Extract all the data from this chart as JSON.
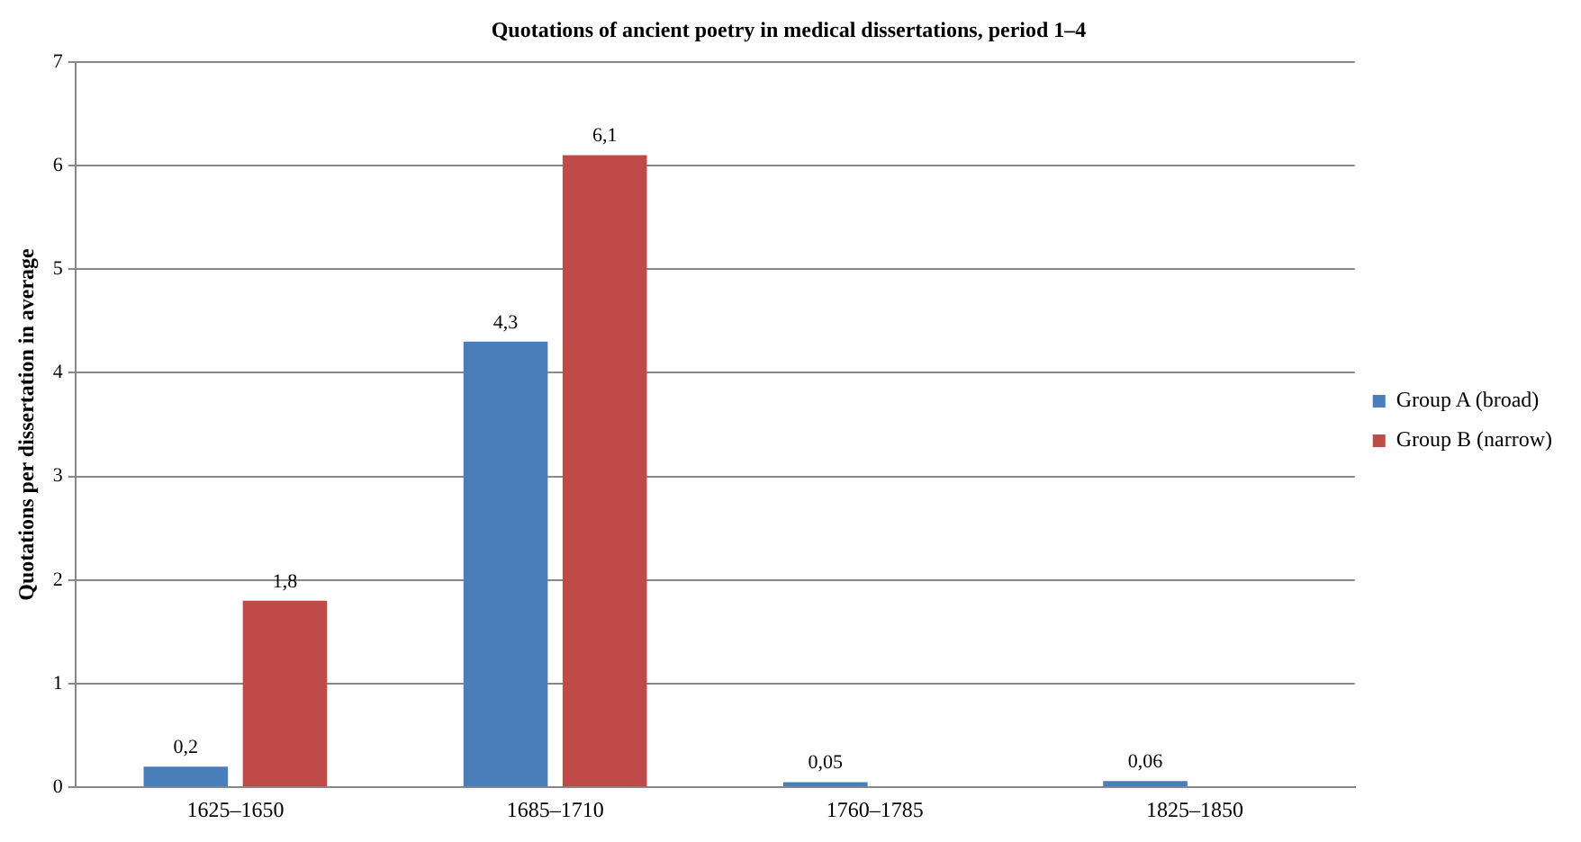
{
  "chart_data": {
    "type": "bar",
    "title": "Quotations of ancient poetry in medical dissertations, period 1–4",
    "ylabel": "Quotations per dissertation in average",
    "categories": [
      "1625–1650",
      "1685–1710",
      "1760–1785",
      "1825–1850"
    ],
    "series": [
      {
        "name": "Group A (broad)",
        "color": "#4a7ebb",
        "values": [
          0.2,
          4.3,
          0.05,
          0.06
        ],
        "value_labels": [
          "0,2",
          "4,3",
          "0,05",
          "0,06"
        ]
      },
      {
        "name": "Group B (narrow)",
        "color": "#be4b48",
        "values": [
          1.8,
          6.1,
          0,
          0
        ],
        "value_labels": [
          "1,8",
          "6,1",
          null,
          null
        ]
      }
    ],
    "ylim": [
      0,
      7
    ],
    "yticks": [
      0,
      1,
      2,
      3,
      4,
      5,
      6,
      7
    ],
    "grid": "y",
    "legend": "right"
  }
}
